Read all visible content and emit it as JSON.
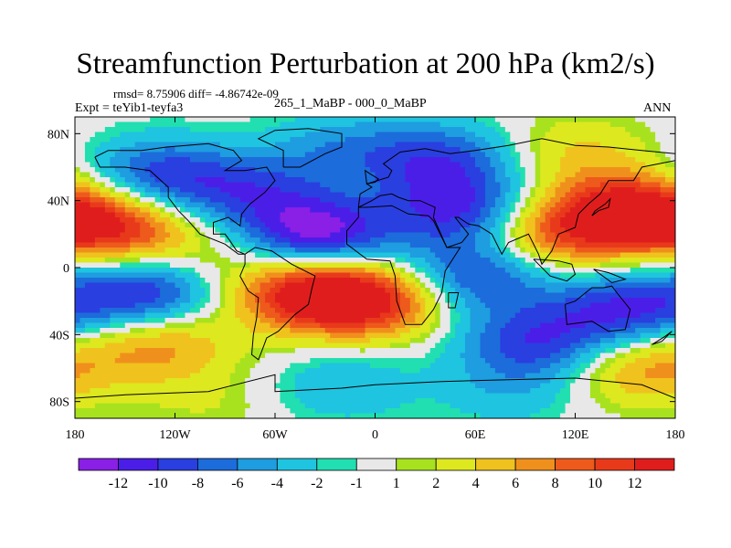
{
  "header": {
    "title": "Streamfunction Perturbation at 200 hPa (km2/s)",
    "stats": "rmsd= 8.75906  diff= -4.86742e-09",
    "experiment": "Expt = teYib1-teyfa3",
    "subtitle": "265_1_MaBP - 000_0_MaBP",
    "season": "ANN"
  },
  "chart_data": {
    "type": "heatmap",
    "title": "Streamfunction Perturbation at 200 hPa (km2/s)",
    "x_ticks": [
      "180",
      "120W",
      "60W",
      "0",
      "60E",
      "120E",
      "180"
    ],
    "x_tick_values": [
      -180,
      -120,
      -60,
      0,
      60,
      120,
      180
    ],
    "y_ticks": [
      "80N",
      "40N",
      "0",
      "40S",
      "80S"
    ],
    "y_tick_values": [
      80,
      40,
      0,
      -40,
      -80
    ],
    "xlim": [
      -180,
      180
    ],
    "ylim": [
      -90,
      90
    ],
    "colorbar": {
      "labels": [
        "-12",
        "-10",
        "-8",
        "-6",
        "-4",
        "-2",
        "-1",
        "1",
        "2",
        "4",
        "6",
        "8",
        "10",
        "12"
      ],
      "levels": [
        -12,
        -10,
        -8,
        -6,
        -4,
        -2,
        -1,
        1,
        2,
        4,
        6,
        8,
        10,
        12
      ],
      "colors": [
        "#8a1fe6",
        "#4b1ee8",
        "#2a3fe0",
        "#1c6cdb",
        "#1e9de0",
        "#1fc4e0",
        "#21dfb0",
        "#e8e8e8",
        "#a8e21e",
        "#dde81f",
        "#f0c21d",
        "#f0901c",
        "#ee5a1b",
        "#e83a1b",
        "#e01d1d"
      ]
    },
    "centers": [
      {
        "lon": -35,
        "lat": 20,
        "value": -13
      },
      {
        "lon": 50,
        "lat": 35,
        "value": -10
      },
      {
        "lon": -130,
        "lat": 55,
        "value": -9
      },
      {
        "lon": -75,
        "lat": 45,
        "value": -7
      },
      {
        "lon": 40,
        "lat": 65,
        "value": -8
      },
      {
        "lon": -140,
        "lat": -15,
        "value": -11
      },
      {
        "lon": 150,
        "lat": -25,
        "value": -10
      },
      {
        "lon": 95,
        "lat": -45,
        "value": -9
      },
      {
        "lon": 60,
        "lat": -5,
        "value": -9
      },
      {
        "lon": -40,
        "lat": -15,
        "value": 13
      },
      {
        "lon": 0,
        "lat": -20,
        "value": 11
      },
      {
        "lon": -160,
        "lat": 25,
        "value": 12
      },
      {
        "lon": 150,
        "lat": 35,
        "value": 12
      },
      {
        "lon": 110,
        "lat": 20,
        "value": 9
      },
      {
        "lon": -130,
        "lat": -45,
        "value": 7
      },
      {
        "lon": 160,
        "lat": -60,
        "value": 7
      },
      {
        "lon": -110,
        "lat": 10,
        "value": 3
      },
      {
        "lon": 120,
        "lat": 70,
        "value": 4
      },
      {
        "lon": -20,
        "lat": -70,
        "value": -4
      },
      {
        "lon": 80,
        "lat": -75,
        "value": -3
      },
      {
        "lon": -100,
        "lat": -80,
        "value": 2
      },
      {
        "lon": -20,
        "lat": 70,
        "value": -5
      }
    ]
  }
}
